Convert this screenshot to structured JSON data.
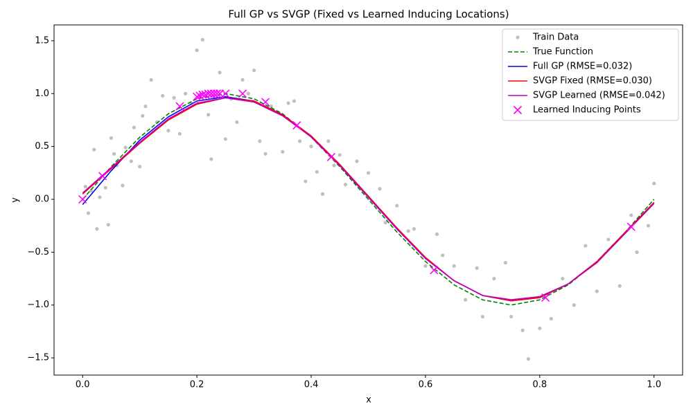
{
  "chart_data": {
    "type": "line",
    "title": "Full GP vs SVGP (Fixed vs Learned Inducing Locations)",
    "x_label": "x",
    "y_label": "y",
    "xlim": [
      -0.05,
      1.05
    ],
    "ylim": [
      -1.663,
      1.65
    ],
    "xticks": [
      {
        "value": 0,
        "label": "0.0"
      },
      0.2,
      0.4,
      0.6,
      0.8,
      {
        "value": 1,
        "label": "1.0"
      }
    ],
    "yticks": [
      {
        "value": -1.5,
        "label": "−1.5"
      },
      {
        "value": -1,
        "label": "−1.0"
      },
      {
        "value": -0.5,
        "label": "−0.5"
      },
      {
        "value": 0,
        "label": "0.0"
      },
      0.5,
      {
        "value": 1,
        "label": "1.0"
      },
      1.5
    ],
    "legend": "upper right",
    "x": [
      0,
      0.05,
      0.1,
      0.15,
      0.2,
      0.25,
      0.3,
      0.35,
      0.4,
      0.45,
      0.5,
      0.55,
      0.6,
      0.65,
      0.7,
      0.75,
      0.8,
      0.85,
      0.9,
      0.95,
      1
    ],
    "series": [
      {
        "name": "Train Data",
        "type": "scatter",
        "marker": "o",
        "color": "#808080",
        "x": [
          0.005,
          0.01,
          0.015,
          0.02,
          0.025,
          0.03,
          0.04,
          0.045,
          0.05,
          0.055,
          0.06,
          0.07,
          0.075,
          0.085,
          0.09,
          0.1,
          0.105,
          0.11,
          0.12,
          0.13,
          0.14,
          0.15,
          0.16,
          0.17,
          0.18,
          0.19,
          0.2,
          0.205,
          0.21,
          0.22,
          0.225,
          0.23,
          0.24,
          0.25,
          0.26,
          0.27,
          0.28,
          0.29,
          0.3,
          0.31,
          0.32,
          0.33,
          0.35,
          0.36,
          0.37,
          0.38,
          0.39,
          0.4,
          0.41,
          0.42,
          0.43,
          0.44,
          0.45,
          0.46,
          0.48,
          0.5,
          0.52,
          0.53,
          0.55,
          0.57,
          0.58,
          0.6,
          0.62,
          0.63,
          0.65,
          0.67,
          0.69,
          0.7,
          0.72,
          0.74,
          0.75,
          0.77,
          0.78,
          0.8,
          0.82,
          0.84,
          0.86,
          0.88,
          0.9,
          0.92,
          0.94,
          0.96,
          0.97,
          0.99,
          1.0
        ],
        "values": [
          0.12,
          -0.13,
          0.08,
          0.47,
          -0.28,
          0.02,
          0.11,
          -0.24,
          0.58,
          0.43,
          0.32,
          0.13,
          0.49,
          0.36,
          0.68,
          0.31,
          0.79,
          0.88,
          1.13,
          0.73,
          0.98,
          0.65,
          0.96,
          0.62,
          1.0,
          0.91,
          1.41,
          0.98,
          1.51,
          0.8,
          0.38,
          0.95,
          1.2,
          0.57,
          0.95,
          0.73,
          1.13,
          1.0,
          1.22,
          0.55,
          0.43,
          0.88,
          0.45,
          0.91,
          0.93,
          0.55,
          0.17,
          0.5,
          0.26,
          0.05,
          0.55,
          0.32,
          0.42,
          0.14,
          0.36,
          0.25,
          0.1,
          -0.22,
          -0.06,
          -0.3,
          -0.28,
          -0.63,
          -0.33,
          -0.53,
          -0.63,
          -0.95,
          -0.65,
          -1.11,
          -0.75,
          -0.6,
          -1.11,
          -1.24,
          -1.51,
          -1.22,
          -1.13,
          -0.75,
          -1.0,
          -0.44,
          -0.87,
          -0.38,
          -0.82,
          -0.15,
          -0.5,
          -0.25,
          0.15
        ]
      },
      {
        "name": "True Function",
        "type": "line",
        "linestyle": "dashed",
        "color": "#008000",
        "values": [
          0,
          0.309,
          0.588,
          0.809,
          0.951,
          1,
          0.951,
          0.809,
          0.588,
          0.309,
          0,
          -0.309,
          -0.588,
          -0.809,
          -0.951,
          -1,
          -0.951,
          -0.809,
          -0.588,
          -0.309,
          0
        ]
      },
      {
        "name": "Full GP (RMSE=0.032)",
        "type": "line",
        "linestyle": "solid",
        "color": "#0000ff",
        "values": [
          -0.05,
          0.27,
          0.56,
          0.78,
          0.93,
          0.97,
          0.93,
          0.8,
          0.59,
          0.32,
          0.02,
          -0.28,
          -0.56,
          -0.77,
          -0.91,
          -0.96,
          -0.93,
          -0.8,
          -0.59,
          -0.31,
          -0.03
        ]
      },
      {
        "name": "SVGP Fixed (RMSE=0.030)",
        "type": "line",
        "linestyle": "solid",
        "color": "#ff0000",
        "values": [
          0.05,
          0.29,
          0.53,
          0.75,
          0.9,
          0.96,
          0.93,
          0.8,
          0.6,
          0.33,
          0.03,
          -0.27,
          -0.55,
          -0.77,
          -0.91,
          -0.96,
          -0.93,
          -0.8,
          -0.59,
          -0.31,
          -0.03
        ]
      },
      {
        "name": "SVGP Learned (RMSE=0.042)",
        "type": "line",
        "linestyle": "solid",
        "color": "#bf00bf",
        "values": [
          0.06,
          0.3,
          0.54,
          0.76,
          0.91,
          0.96,
          0.92,
          0.79,
          0.59,
          0.32,
          0.02,
          -0.28,
          -0.56,
          -0.77,
          -0.91,
          -0.95,
          -0.92,
          -0.8,
          -0.6,
          -0.32,
          -0.04
        ]
      },
      {
        "name": "Learned Inducing Points",
        "type": "scatter",
        "marker": "x",
        "color": "#ff00ff",
        "x": [
          0,
          0.035,
          0.17,
          0.2,
          0.205,
          0.21,
          0.215,
          0.22,
          0.225,
          0.23,
          0.235,
          0.24,
          0.25,
          0.28,
          0.32,
          0.375,
          0.435,
          0.615,
          0.81,
          0.96
        ],
        "values": [
          0,
          0.22,
          0.88,
          0.97,
          0.98,
          0.99,
          0.99,
          1.0,
          1.0,
          1.0,
          1.0,
          1.0,
          1.0,
          1.0,
          0.92,
          0.7,
          0.4,
          -0.67,
          -0.93,
          -0.26
        ]
      }
    ]
  }
}
